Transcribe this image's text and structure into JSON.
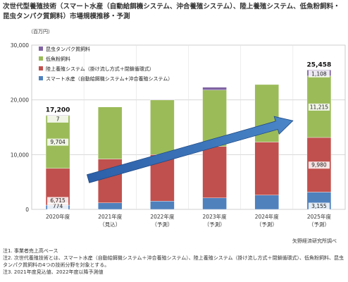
{
  "title": "次世代型養殖技術（スマート水産（自動給餌機システム、沖合養殖システム）、陸上養殖システム、低魚粉飼料・昆虫タンパク質飼料）市場規模推移・予測",
  "unit": "（百万円）",
  "source": "矢野経済研究所調べ",
  "notes": [
    "注1. 事業者売上高ベース",
    "注2. 次世代養殖技術とは、スマート水産（自動給餌機システム＋沖合養殖システム）、陸上養殖システム（掛け流し方式＋閉鎖循環式）、低魚粉飼料、昆虫タンパク質飼料の4つの技術分野を対象とする。",
    "注3. 2021年度見込値、2022年度以降予測値"
  ],
  "chart_data": {
    "type": "bar",
    "stacked": true,
    "categories": [
      "2020年度",
      "2021年度",
      "2022年度",
      "2023年度",
      "2024年度",
      "2025年度"
    ],
    "category_sublabels": [
      "",
      "（見込）",
      "（予測）",
      "（予測）",
      "（予測）",
      "（予測）"
    ],
    "y_ticks": [
      "0",
      "10,000",
      "20,000",
      "30,000"
    ],
    "ylim": [
      0,
      30000
    ],
    "grid": true,
    "legend_position": "top-left",
    "series": [
      {
        "name": "スマート水産（自動給餌機システム+沖合養殖システム）",
        "color": "#4f81bd",
        "values": [
          774,
          1200,
          1500,
          2100,
          2600,
          3155
        ]
      },
      {
        "name": "陸上養殖システム（掛け流し方式＋閉鎖循環式）",
        "color": "#c0504d",
        "values": [
          6715,
          8000,
          8500,
          9400,
          9700,
          9980
        ]
      },
      {
        "name": "低魚粉飼料",
        "color": "#9bbb59",
        "values": [
          9704,
          9500,
          10000,
          10300,
          10500,
          11215
        ]
      },
      {
        "name": "昆虫タンパク質飼料",
        "color": "#8064a2",
        "values": [
          7,
          0,
          50,
          500,
          0,
          1108
        ]
      }
    ],
    "totals": [
      17200,
      null,
      null,
      null,
      null,
      25458
    ],
    "total_labels": [
      "17,200",
      "",
      "",
      "",
      "",
      "25,458"
    ],
    "data_labels": {
      "0": [
        "774",
        "6,715",
        "9,704",
        "7"
      ],
      "5": [
        "3,155",
        "9,980",
        "11,215",
        "1,108"
      ]
    },
    "annotation": "upward trend arrow"
  }
}
